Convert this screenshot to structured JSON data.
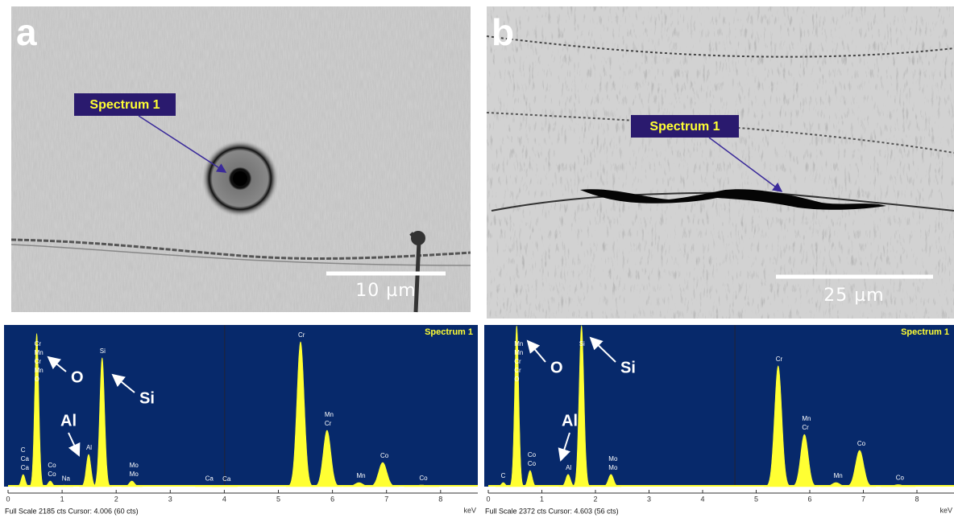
{
  "panels": [
    {
      "letter": "a",
      "callout": "Spectrum 1",
      "scale_bar": "10 µm"
    },
    {
      "letter": "b",
      "callout": "Spectrum 1",
      "scale_bar": "25 µm"
    }
  ],
  "spectra": [
    {
      "title": "Spectrum 1",
      "footer": "Full Scale 2185 cts Cursor: 4.006 (60 cts)",
      "unit": "keV",
      "ylim": [
        0,
        2185
      ],
      "xlim": [
        0,
        8.7
      ],
      "xticks": [
        0,
        1,
        2,
        3,
        4,
        5,
        6,
        7,
        8
      ],
      "cursor": 4.006,
      "peaks": [
        {
          "x": 0.28,
          "height": 164,
          "labels": [
            "C",
            "Ca",
            "Ca"
          ]
        },
        {
          "x": 0.53,
          "height": 2076,
          "labels": [
            "Cr",
            "Mn",
            "Cr",
            "Mn",
            "O"
          ]
        },
        {
          "x": 0.78,
          "height": 77,
          "labels": [
            "Co",
            "Co"
          ]
        },
        {
          "x": 1.04,
          "height": 20,
          "labels": [
            "Na"
          ]
        },
        {
          "x": 1.49,
          "height": 437,
          "labels": [
            "Al"
          ]
        },
        {
          "x": 1.74,
          "height": 1748,
          "labels": [
            "Si"
          ]
        },
        {
          "x": 2.29,
          "height": 77,
          "labels": [
            "Mo",
            "Mo"
          ]
        },
        {
          "x": 3.69,
          "height": 15,
          "labels": [
            "Ca"
          ]
        },
        {
          "x": 4.01,
          "height": 12,
          "labels": [
            "Ca"
          ]
        },
        {
          "x": 5.41,
          "height": 1966,
          "labels": [
            "Cr"
          ]
        },
        {
          "x": 5.9,
          "height": 765,
          "labels": [
            "Mn",
            "Cr"
          ]
        },
        {
          "x": 6.49,
          "height": 55,
          "labels": [
            "Mn"
          ]
        },
        {
          "x": 6.93,
          "height": 328,
          "labels": [
            "Co"
          ]
        },
        {
          "x": 7.65,
          "height": 22,
          "labels": [
            "Co"
          ]
        }
      ],
      "annotations": [
        "O",
        "Si",
        "Al"
      ]
    },
    {
      "title": "Spectrum 1",
      "footer": "Full Scale 2372 cts Cursor: 4.603 (56 cts)",
      "unit": "keV",
      "ylim": [
        0,
        2372
      ],
      "xlim": [
        0,
        8.7
      ],
      "xticks": [
        0,
        1,
        2,
        3,
        4,
        5,
        6,
        7,
        8
      ],
      "cursor": 4.603,
      "peaks": [
        {
          "x": 0.28,
          "height": 60,
          "labels": [
            "C"
          ]
        },
        {
          "x": 0.53,
          "height": 2372,
          "labels": [
            "Mn",
            "Mn",
            "Cr",
            "Cr",
            "O"
          ]
        },
        {
          "x": 0.78,
          "height": 237,
          "labels": [
            "Co",
            "Co"
          ]
        },
        {
          "x": 1.49,
          "height": 180,
          "labels": [
            "Al"
          ]
        },
        {
          "x": 1.74,
          "height": 2372,
          "labels": [
            "Si"
          ]
        },
        {
          "x": 2.29,
          "height": 180,
          "labels": [
            "Mo",
            "Mo"
          ]
        },
        {
          "x": 5.41,
          "height": 1780,
          "labels": [
            "Cr"
          ]
        },
        {
          "x": 5.9,
          "height": 770,
          "labels": [
            "Mn",
            "Cr"
          ]
        },
        {
          "x": 6.49,
          "height": 60,
          "labels": [
            "Mn"
          ]
        },
        {
          "x": 6.93,
          "height": 534,
          "labels": [
            "Co"
          ]
        },
        {
          "x": 7.65,
          "height": 30,
          "labels": [
            "Co"
          ]
        }
      ],
      "annotations": [
        "O",
        "Si",
        "Al"
      ]
    }
  ]
}
